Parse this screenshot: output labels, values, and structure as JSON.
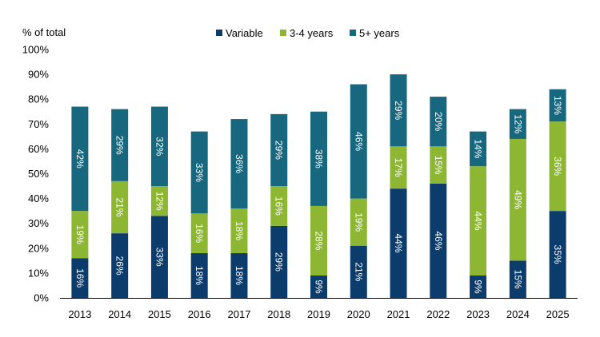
{
  "chart_data": {
    "type": "bar",
    "stacked": true,
    "ylabel": "% of total",
    "ylim": [
      0,
      100
    ],
    "yticks": [
      "0%",
      "10%",
      "20%",
      "30%",
      "40%",
      "50%",
      "60%",
      "70%",
      "80%",
      "90%",
      "100%"
    ],
    "legend_position": "top",
    "grid": false,
    "categories": [
      "2013",
      "2014",
      "2015",
      "2016",
      "2017",
      "2018",
      "2019",
      "2020",
      "2021",
      "2022",
      "2023",
      "2024",
      "2025"
    ],
    "series": [
      {
        "name": "Variable",
        "color": "#0b3c6b",
        "values": [
          16,
          26,
          33,
          18,
          18,
          29,
          9,
          21,
          44,
          46,
          9,
          15,
          35
        ],
        "labels": [
          "16%",
          "26%",
          "33%",
          "18%",
          "18%",
          "29%",
          "9%",
          "21%",
          "44%",
          "46%",
          "9%",
          "15%",
          "35%"
        ]
      },
      {
        "name": "3-4 years",
        "color": "#8db733",
        "values": [
          19,
          21,
          12,
          16,
          18,
          16,
          28,
          19,
          17,
          15,
          44,
          49,
          36
        ],
        "labels": [
          "19%",
          "21%",
          "12%",
          "16%",
          "18%",
          "16%",
          "28%",
          "19%",
          "17%",
          "15%",
          "44%",
          "49%",
          "36%"
        ]
      },
      {
        "name": "5+ years",
        "color": "#17677f",
        "values": [
          42,
          29,
          32,
          33,
          36,
          29,
          38,
          46,
          29,
          20,
          14,
          12,
          13
        ],
        "labels": [
          "42%",
          "29%",
          "32%",
          "33%",
          "36%",
          "29%",
          "38%",
          "46%",
          "29%",
          "20%",
          "14%",
          "12%",
          "13%"
        ]
      }
    ]
  }
}
